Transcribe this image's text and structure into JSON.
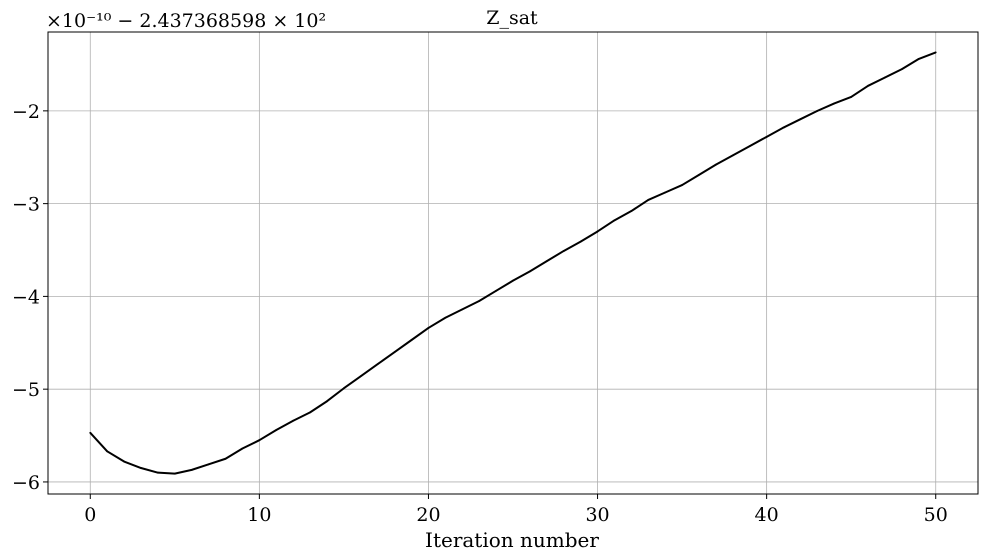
{
  "chart_data": {
    "type": "line",
    "title": "Z_sat",
    "xlabel": "Iteration number",
    "ylabel": "",
    "offset_label": "×10⁻¹⁰ − 2.437368598 × 10²",
    "xlim": [
      -2.5,
      52.5
    ],
    "ylim": [
      -6.13,
      -1.15
    ],
    "xticks": [
      0,
      10,
      20,
      30,
      40,
      50
    ],
    "yticks": [
      -6,
      -5,
      -4,
      -3,
      -2
    ],
    "xtick_labels": [
      "0",
      "10",
      "20",
      "30",
      "40",
      "50"
    ],
    "ytick_labels": [
      "−6",
      "−5",
      "−4",
      "−3",
      "−2"
    ],
    "grid": true,
    "line_color": "#000000",
    "series": [
      {
        "name": "Z_sat",
        "x": [
          0,
          1,
          2,
          3,
          4,
          5,
          6,
          7,
          8,
          9,
          10,
          11,
          12,
          13,
          14,
          15,
          16,
          17,
          18,
          19,
          20,
          21,
          22,
          23,
          24,
          25,
          26,
          27,
          28,
          29,
          30,
          31,
          32,
          33,
          34,
          35,
          36,
          37,
          38,
          39,
          40,
          41,
          42,
          43,
          44,
          45,
          46,
          47,
          48,
          49,
          50
        ],
        "y": [
          -5.47,
          -5.67,
          -5.78,
          -5.85,
          -5.9,
          -5.91,
          -5.87,
          -5.81,
          -5.75,
          -5.64,
          -5.55,
          -5.44,
          -5.34,
          -5.25,
          -5.13,
          -4.99,
          -4.86,
          -4.73,
          -4.6,
          -4.47,
          -4.34,
          -4.23,
          -4.14,
          -4.05,
          -3.94,
          -3.83,
          -3.73,
          -3.62,
          -3.51,
          -3.41,
          -3.3,
          -3.18,
          -3.08,
          -2.96,
          -2.88,
          -2.8,
          -2.69,
          -2.58,
          -2.48,
          -2.38,
          -2.28,
          -2.18,
          -2.09,
          -2.0,
          -1.92,
          -1.85,
          -1.73,
          -1.64,
          -1.55,
          -1.44,
          -1.37
        ]
      }
    ]
  }
}
